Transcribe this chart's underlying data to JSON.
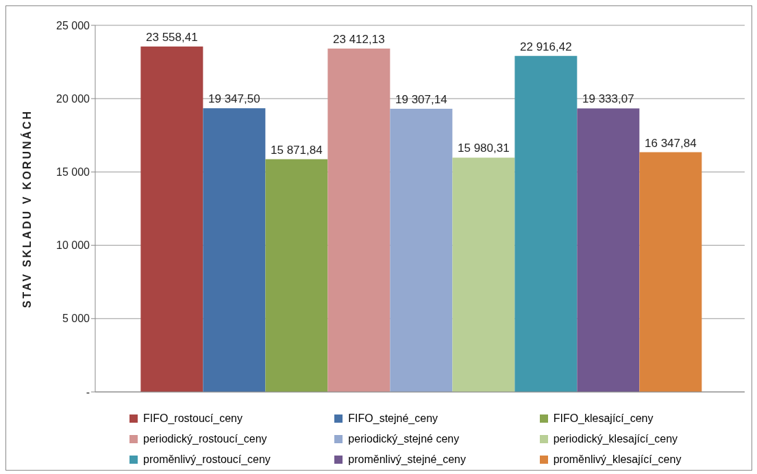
{
  "chart_data": {
    "type": "bar",
    "ylabel": "STAV SKLADU V KORUNÁCH",
    "categories": [
      null
    ],
    "series": [
      {
        "name": "FIFO_rostoucí_ceny",
        "color": "#a94543",
        "values": [
          23558.41
        ],
        "value_labels": [
          "23 558,41"
        ]
      },
      {
        "name": "FIFO_stejné_ceny",
        "color": "#4672a8",
        "values": [
          19347.5
        ],
        "value_labels": [
          "19 347,50"
        ]
      },
      {
        "name": "FIFO_klesající_ceny",
        "color": "#89a54e",
        "values": [
          15871.84
        ],
        "value_labels": [
          "15 871,84"
        ]
      },
      {
        "name": "periodický_rostoucí_ceny",
        "color": "#d39391",
        "values": [
          23412.13
        ],
        "value_labels": [
          "23 412,13"
        ]
      },
      {
        "name": "periodický_stejné ceny",
        "color": "#94a9d0",
        "values": [
          19307.14
        ],
        "value_labels": [
          "19 307,14"
        ]
      },
      {
        "name": "periodický_klesající_ceny",
        "color": "#b9cf96",
        "values": [
          15980.31
        ],
        "value_labels": [
          "15 980,31"
        ]
      },
      {
        "name": "proměnlivý_rostoucí_ceny",
        "color": "#4199ad",
        "values": [
          22916.42
        ],
        "value_labels": [
          "22 916,42"
        ]
      },
      {
        "name": "proměnlivý_stejné_ceny",
        "color": "#71588f",
        "values": [
          19333.07
        ],
        "value_labels": [
          "19 333,07"
        ]
      },
      {
        "name": "proměnlivý_klesající_ceny",
        "color": "#db843d",
        "values": [
          16347.84
        ],
        "value_labels": [
          "16 347,84"
        ]
      }
    ],
    "ylim": [
      0,
      25000
    ],
    "yticks": [
      {
        "value": 0,
        "label": "-"
      },
      {
        "value": 5000,
        "label": "5 000"
      },
      {
        "value": 10000,
        "label": "10 000"
      },
      {
        "value": 15000,
        "label": "15 000"
      },
      {
        "value": 20000,
        "label": "20 000"
      },
      {
        "value": 25000,
        "label": "25 000"
      }
    ],
    "grid": "y",
    "legend": "bottom"
  }
}
